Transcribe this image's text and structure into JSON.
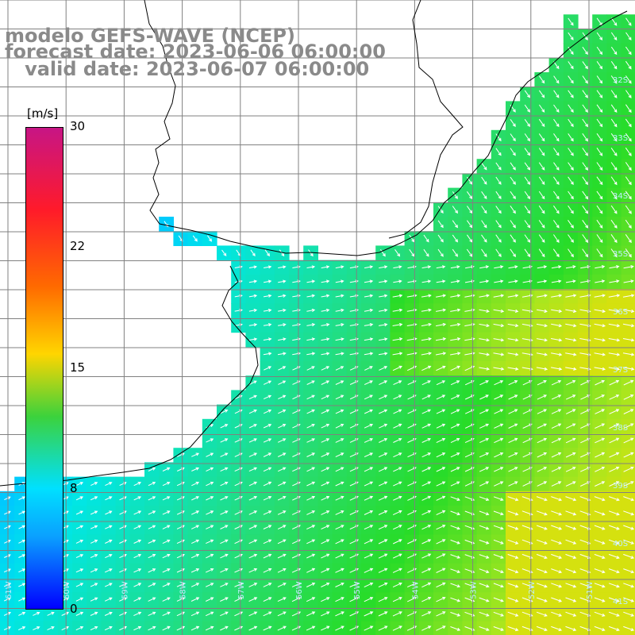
{
  "titles": {
    "line1": "modelo GEFS-WAVE (NCEP)",
    "line2": "forecast date: 2023-06-06 06:00:00",
    "line3": "   valid date: 2023-06-07 06:00:00"
  },
  "colorbar": {
    "unit": "[m/s]",
    "ticks": [
      "30",
      "22",
      "15",
      "8",
      "0"
    ],
    "range": [
      0,
      30
    ]
  },
  "latitude_labels": [
    "32S",
    "33S",
    "34S",
    "35S",
    "36S",
    "37S",
    "38S",
    "39S",
    "40S",
    "41S"
  ],
  "longitude_labels": [
    "61W",
    "60W",
    "59W",
    "58W",
    "57W",
    "56W",
    "55W",
    "54W",
    "53W",
    "52W",
    "51W"
  ],
  "colors": {
    "land": "#ffffff",
    "coast": "#000000",
    "grid": "#808080",
    "arrows": "#ffffff",
    "title_text": "#8a8a8a"
  }
}
